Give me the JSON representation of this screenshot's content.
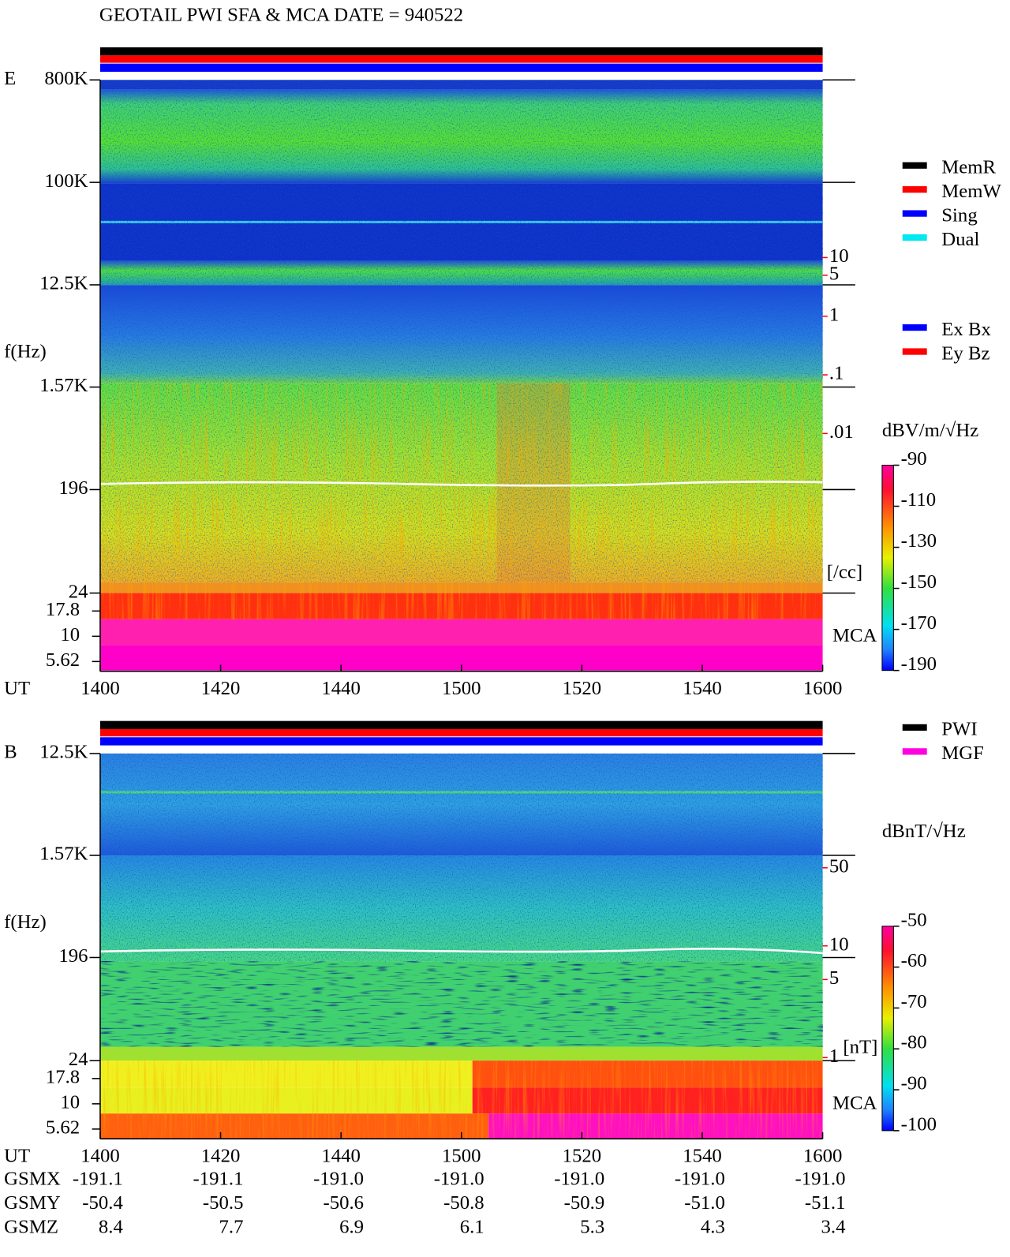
{
  "header": {
    "title": "GEOTAIL  PWI SFA & MCA   DATE = 940522"
  },
  "chart_data": [
    {
      "type": "spectrogram",
      "panel_label": "E",
      "ylabel": "f(Hz)",
      "xlabel": "UT",
      "categories": [
        "1400",
        "1420",
        "1440",
        "1500",
        "1520",
        "1540",
        "1600"
      ],
      "ylim": [
        24,
        800000
      ],
      "log_y": true,
      "yticks": [
        {
          "value": 800000,
          "label": "800K"
        },
        {
          "value": 100000,
          "label": "100K"
        },
        {
          "value": 12500,
          "label": "12.5K"
        },
        {
          "value": 1570,
          "label": "1.57K"
        },
        196,
        24
      ],
      "mca_label": "MCA",
      "mca_ylim": [
        4.5,
        26.8
      ],
      "mca_yticks": [
        17.8,
        10,
        5.62
      ],
      "density_label": "[/cc]",
      "density_ylim": [
        1.9e-05,
        10700
      ],
      "density_yticks": [
        10,
        5,
        1,
        {
          "value": 0.1,
          "label": ".1"
        },
        {
          "value": 0.01,
          "label": ".01"
        }
      ],
      "colorbar_label": "dBV/m/√Hz",
      "clim": [
        -190,
        -90
      ],
      "cticks": [
        -90,
        -110,
        -130,
        -150,
        -170,
        -190
      ],
      "legend": [
        {
          "name": "MemR",
          "color": "#000000"
        },
        {
          "name": "MemW",
          "color": "#ff0000"
        },
        {
          "name": "Sing",
          "color": "#0000ff"
        },
        {
          "name": "Dual",
          "color": "#00e8f0"
        }
      ],
      "legend2": [
        {
          "name": "Ex Bx",
          "color": "#0000ff"
        },
        {
          "name": "Ey Bz",
          "color": "#ff0000"
        }
      ]
    },
    {
      "type": "spectrogram",
      "panel_label": "B",
      "ylabel": "f(Hz)",
      "xlabel": "UT",
      "categories": [
        "1400",
        "1420",
        "1440",
        "1500",
        "1520",
        "1540",
        "1600"
      ],
      "ylim": [
        24,
        12500
      ],
      "log_y": true,
      "yticks": [
        {
          "value": 12500,
          "label": "12.5K"
        },
        {
          "value": 1570,
          "label": "1.57K"
        },
        196,
        24
      ],
      "mca_label": "MCA",
      "mca_ylim": [
        4.5,
        26.8
      ],
      "mca_yticks": [
        17.8,
        10,
        5.62
      ],
      "density_label": "[nT]",
      "density_ylim": [
        0.94,
        527
      ],
      "density_yticks": [
        50,
        10,
        5,
        1
      ],
      "colorbar_label": "dBnT/√Hz",
      "clim": [
        -100,
        -50
      ],
      "cticks": [
        -50,
        -60,
        -70,
        -80,
        -90,
        -100
      ],
      "legend": [
        {
          "name": "PWI",
          "color": "#000000"
        },
        {
          "name": "MGF",
          "color": "#ff00e0"
        }
      ]
    }
  ],
  "orbit": {
    "rows": [
      {
        "label": "GSMX",
        "values": [
          "-191.1",
          "-191.1",
          "-191.0",
          "-191.0",
          "-191.0",
          "-191.0",
          "-191.0"
        ]
      },
      {
        "label": "GSMY",
        "values": [
          "-50.4",
          "-50.5",
          "-50.6",
          "-50.8",
          "-50.9",
          "-51.0",
          "-51.1"
        ]
      },
      {
        "label": "GSMZ",
        "values": [
          "8.4",
          "7.7",
          "6.9",
          "6.1",
          "5.3",
          "4.3",
          "3.4"
        ]
      }
    ]
  }
}
